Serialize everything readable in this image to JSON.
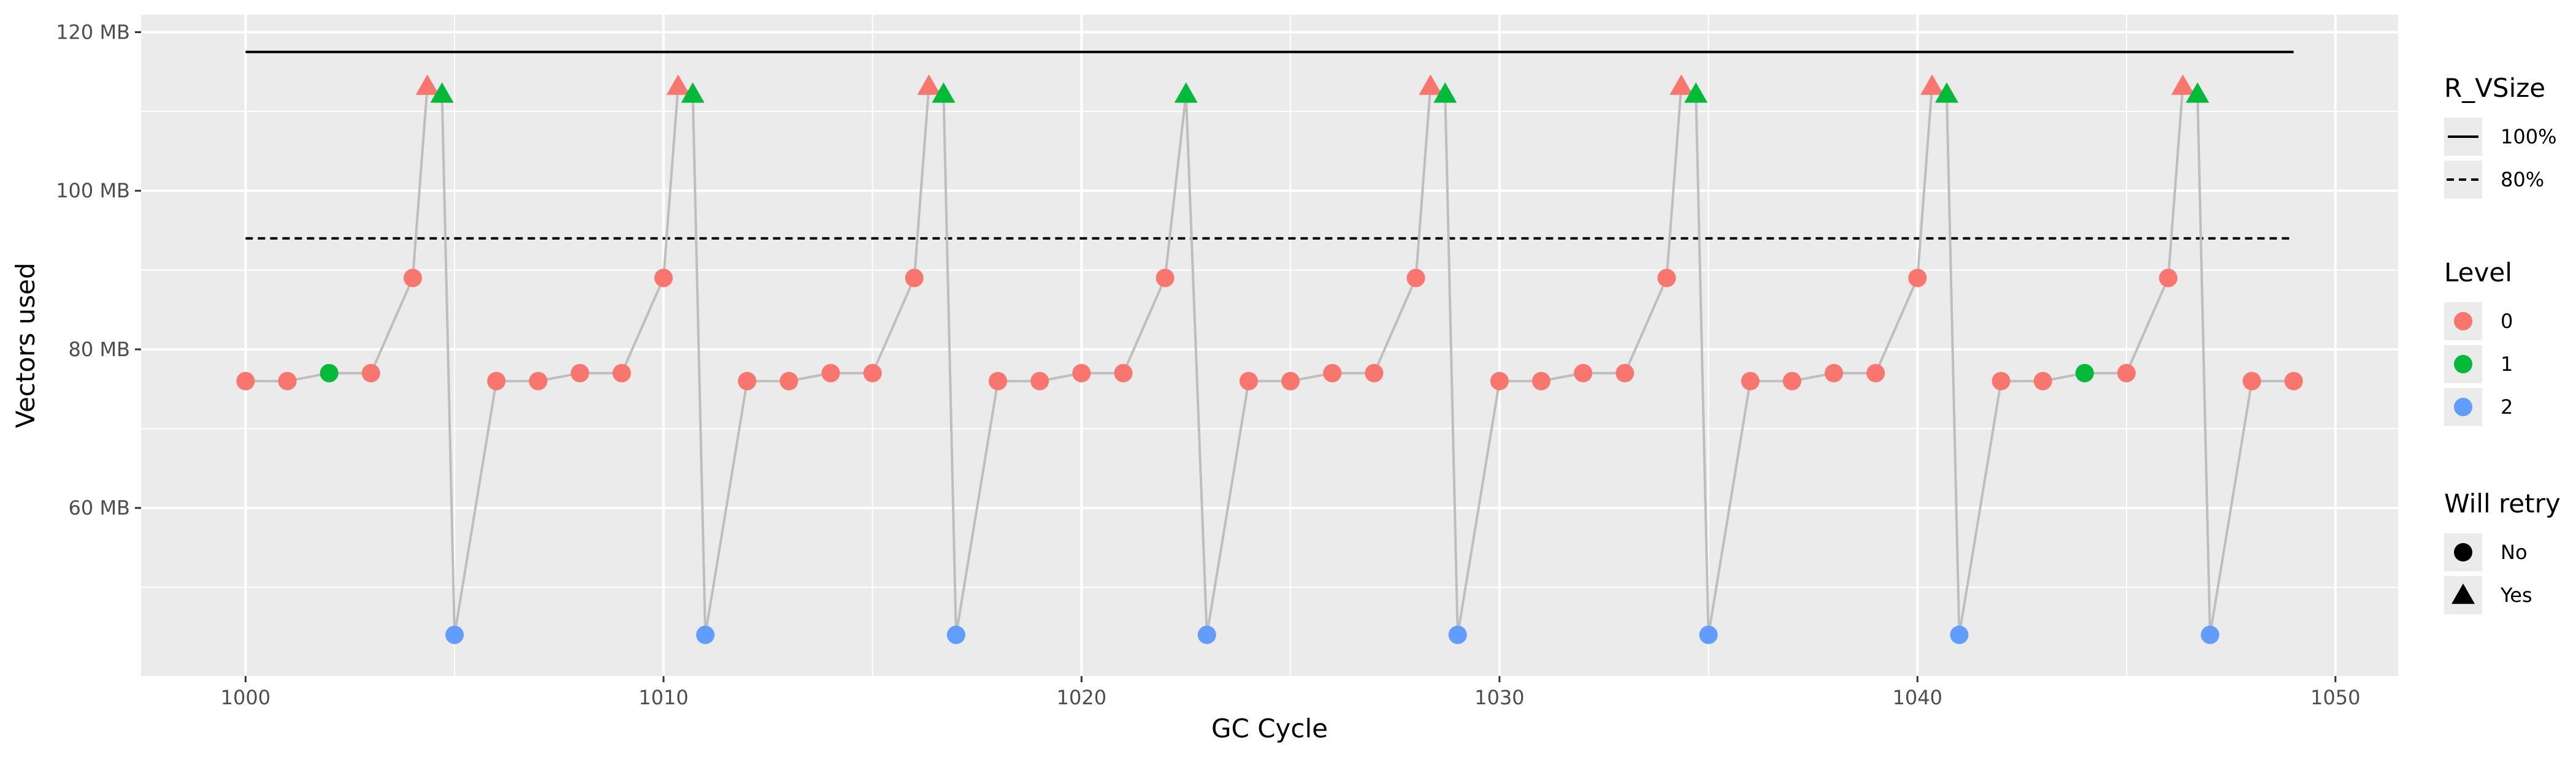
{
  "chart_data": {
    "type": "scatter",
    "xlabel": "GC Cycle",
    "ylabel": "Vectors used",
    "xlim": [
      997.5,
      1051.5
    ],
    "ylim": [
      38.8,
      122.2
    ],
    "x_ticks": [
      1000,
      1010,
      1020,
      1030,
      1040,
      1050
    ],
    "y_ticks": [
      {
        "value": 60,
        "label": "60 MB"
      },
      {
        "value": 80,
        "label": "80 MB"
      },
      {
        "value": 100,
        "label": "100 MB"
      },
      {
        "value": 120,
        "label": "120 MB"
      }
    ],
    "grid": true,
    "reference_lines": [
      {
        "name": "100%",
        "y": 117.5,
        "x_start": 1000,
        "x_end": 1049,
        "style": "solid"
      },
      {
        "name": "80%",
        "y": 94,
        "x_start": 1000,
        "x_end": 1049,
        "style": "dashed"
      }
    ],
    "points": [
      {
        "x": 1000,
        "y": 76,
        "level": 0,
        "retry": "No"
      },
      {
        "x": 1001,
        "y": 76,
        "level": 0,
        "retry": "No"
      },
      {
        "x": 1002,
        "y": 77,
        "level": 1,
        "retry": "No"
      },
      {
        "x": 1003,
        "y": 77,
        "level": 0,
        "retry": "No"
      },
      {
        "x": 1004,
        "y": 89,
        "level": 0,
        "retry": "No"
      },
      {
        "x": 1004.35,
        "y": 113.2,
        "level": 0,
        "retry": "Yes"
      },
      {
        "x": 1004.7,
        "y": 112.2,
        "level": 1,
        "retry": "Yes"
      },
      {
        "x": 1005,
        "y": 44,
        "level": 2,
        "retry": "No"
      },
      {
        "x": 1006,
        "y": 76,
        "level": 0,
        "retry": "No"
      },
      {
        "x": 1007,
        "y": 76,
        "level": 0,
        "retry": "No"
      },
      {
        "x": 1008,
        "y": 77,
        "level": 0,
        "retry": "No"
      },
      {
        "x": 1009,
        "y": 77,
        "level": 0,
        "retry": "No"
      },
      {
        "x": 1010,
        "y": 89,
        "level": 0,
        "retry": "No"
      },
      {
        "x": 1010.35,
        "y": 113.2,
        "level": 0,
        "retry": "Yes"
      },
      {
        "x": 1010.7,
        "y": 112.2,
        "level": 1,
        "retry": "Yes"
      },
      {
        "x": 1011,
        "y": 44,
        "level": 2,
        "retry": "No"
      },
      {
        "x": 1012,
        "y": 76,
        "level": 0,
        "retry": "No"
      },
      {
        "x": 1013,
        "y": 76,
        "level": 0,
        "retry": "No"
      },
      {
        "x": 1014,
        "y": 77,
        "level": 0,
        "retry": "No"
      },
      {
        "x": 1015,
        "y": 77,
        "level": 0,
        "retry": "No"
      },
      {
        "x": 1016,
        "y": 89,
        "level": 0,
        "retry": "No"
      },
      {
        "x": 1016.35,
        "y": 113.2,
        "level": 0,
        "retry": "Yes"
      },
      {
        "x": 1016.7,
        "y": 112.2,
        "level": 1,
        "retry": "Yes"
      },
      {
        "x": 1017,
        "y": 44,
        "level": 2,
        "retry": "No"
      },
      {
        "x": 1018,
        "y": 76,
        "level": 0,
        "retry": "No"
      },
      {
        "x": 1019,
        "y": 76,
        "level": 0,
        "retry": "No"
      },
      {
        "x": 1020,
        "y": 77,
        "level": 0,
        "retry": "No"
      },
      {
        "x": 1021,
        "y": 77,
        "level": 0,
        "retry": "No"
      },
      {
        "x": 1022,
        "y": 89,
        "level": 0,
        "retry": "No"
      },
      {
        "x": 1022.5,
        "y": 112.2,
        "level": 1,
        "retry": "Yes"
      },
      {
        "x": 1023,
        "y": 44,
        "level": 2,
        "retry": "No"
      },
      {
        "x": 1024,
        "y": 76,
        "level": 0,
        "retry": "No"
      },
      {
        "x": 1025,
        "y": 76,
        "level": 0,
        "retry": "No"
      },
      {
        "x": 1026,
        "y": 77,
        "level": 0,
        "retry": "No"
      },
      {
        "x": 1027,
        "y": 77,
        "level": 0,
        "retry": "No"
      },
      {
        "x": 1028,
        "y": 89,
        "level": 0,
        "retry": "No"
      },
      {
        "x": 1028.35,
        "y": 113.2,
        "level": 0,
        "retry": "Yes"
      },
      {
        "x": 1028.7,
        "y": 112.2,
        "level": 1,
        "retry": "Yes"
      },
      {
        "x": 1029,
        "y": 44,
        "level": 2,
        "retry": "No"
      },
      {
        "x": 1030,
        "y": 76,
        "level": 0,
        "retry": "No"
      },
      {
        "x": 1031,
        "y": 76,
        "level": 0,
        "retry": "No"
      },
      {
        "x": 1032,
        "y": 77,
        "level": 0,
        "retry": "No"
      },
      {
        "x": 1033,
        "y": 77,
        "level": 0,
        "retry": "No"
      },
      {
        "x": 1034,
        "y": 89,
        "level": 0,
        "retry": "No"
      },
      {
        "x": 1034.35,
        "y": 113.2,
        "level": 0,
        "retry": "Yes"
      },
      {
        "x": 1034.7,
        "y": 112.2,
        "level": 1,
        "retry": "Yes"
      },
      {
        "x": 1035,
        "y": 44,
        "level": 2,
        "retry": "No"
      },
      {
        "x": 1036,
        "y": 76,
        "level": 0,
        "retry": "No"
      },
      {
        "x": 1037,
        "y": 76,
        "level": 0,
        "retry": "No"
      },
      {
        "x": 1038,
        "y": 77,
        "level": 0,
        "retry": "No"
      },
      {
        "x": 1039,
        "y": 77,
        "level": 0,
        "retry": "No"
      },
      {
        "x": 1040,
        "y": 89,
        "level": 0,
        "retry": "No"
      },
      {
        "x": 1040.35,
        "y": 113.2,
        "level": 0,
        "retry": "Yes"
      },
      {
        "x": 1040.7,
        "y": 112.2,
        "level": 1,
        "retry": "Yes"
      },
      {
        "x": 1041,
        "y": 44,
        "level": 2,
        "retry": "No"
      },
      {
        "x": 1042,
        "y": 76,
        "level": 0,
        "retry": "No"
      },
      {
        "x": 1043,
        "y": 76,
        "level": 0,
        "retry": "No"
      },
      {
        "x": 1044,
        "y": 77,
        "level": 1,
        "retry": "No"
      },
      {
        "x": 1045,
        "y": 77,
        "level": 0,
        "retry": "No"
      },
      {
        "x": 1046,
        "y": 89,
        "level": 0,
        "retry": "No"
      },
      {
        "x": 1046.35,
        "y": 113.2,
        "level": 0,
        "retry": "Yes"
      },
      {
        "x": 1046.7,
        "y": 112.2,
        "level": 1,
        "retry": "Yes"
      },
      {
        "x": 1047,
        "y": 44,
        "level": 2,
        "retry": "No"
      },
      {
        "x": 1048,
        "y": 76,
        "level": 0,
        "retry": "No"
      },
      {
        "x": 1049,
        "y": 76,
        "level": 0,
        "retry": "No"
      }
    ],
    "legends": {
      "rvsize": {
        "title": "R_VSize",
        "items": [
          {
            "label": "100%",
            "style": "solid"
          },
          {
            "label": "80%",
            "style": "dashed"
          }
        ]
      },
      "level": {
        "title": "Level",
        "items": [
          {
            "label": "0",
            "color": "#F8766D"
          },
          {
            "label": "1",
            "color": "#00BA38"
          },
          {
            "label": "2",
            "color": "#619CFF"
          }
        ]
      },
      "retry": {
        "title": "Will retry",
        "items": [
          {
            "label": "No",
            "shape": "circle"
          },
          {
            "label": "Yes",
            "shape": "triangle"
          }
        ]
      }
    },
    "legend_position": "right",
    "colors": {
      "level_0": "#F8766D",
      "level_1": "#00BA38",
      "level_2": "#619CFF",
      "panel": "#EBEBEB",
      "grid": "#FFFFFF",
      "connector": "#BEBEBE"
    }
  }
}
